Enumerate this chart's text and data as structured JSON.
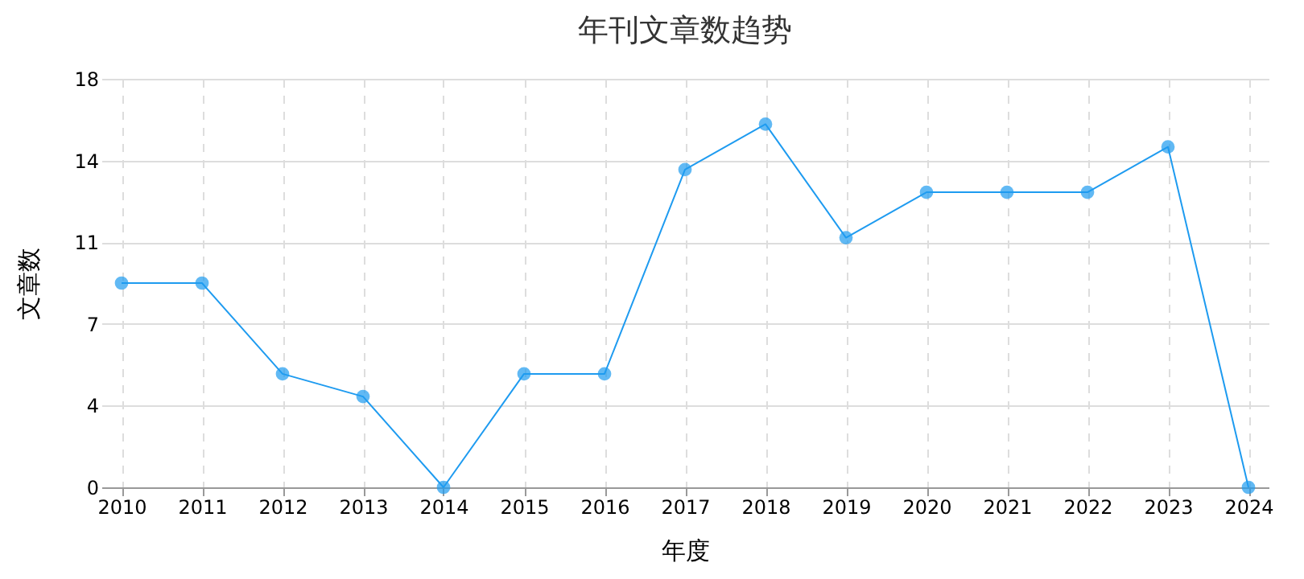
{
  "chart_data": {
    "type": "line",
    "title": "年刊文章数趋势",
    "xlabel": "年度",
    "ylabel": "文章数",
    "categories": [
      "2010",
      "2011",
      "2012",
      "2013",
      "2014",
      "2015",
      "2016",
      "2017",
      "2018",
      "2019",
      "2020",
      "2021",
      "2022",
      "2023",
      "2024"
    ],
    "series": [
      {
        "color": "#1e9bf0",
        "values": [
          9,
          9,
          5,
          4,
          0,
          5,
          5,
          14,
          16,
          11,
          13,
          13,
          13,
          15,
          0
        ]
      }
    ],
    "ylim": [
      0,
      18
    ],
    "yticks": [
      0,
      {
        "value": 3.6,
        "label": "4"
      },
      {
        "value": 7.2,
        "label": "7"
      },
      {
        "value": 10.8,
        "label": "11"
      },
      {
        "value": 14.4,
        "label": "14"
      },
      18
    ],
    "grid": true,
    "marker": "circle",
    "line_style": "solid"
  }
}
